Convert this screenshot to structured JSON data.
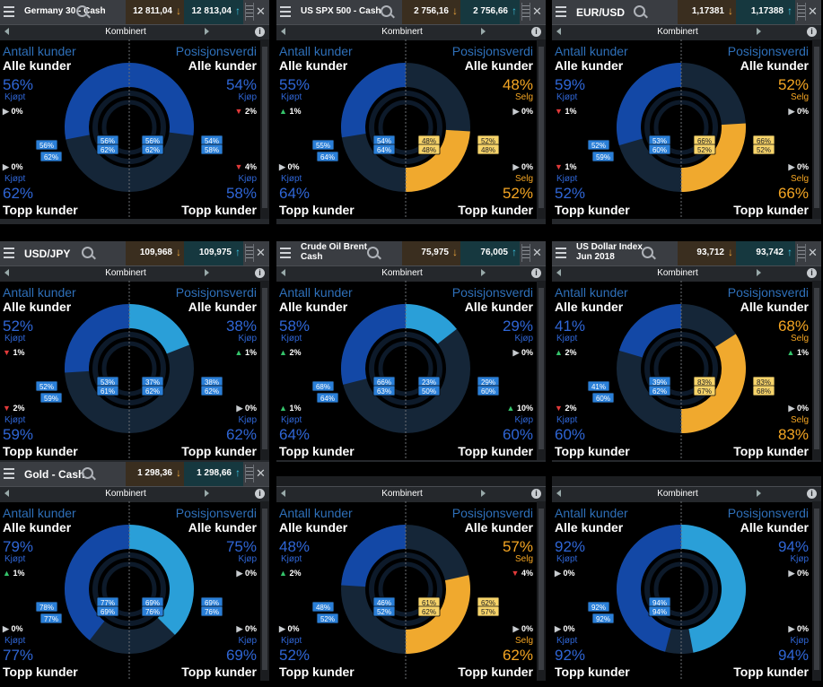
{
  "colors": {
    "buy_dark": "#1348a6",
    "buy_light": "#2a9fd8",
    "sell": "#f0a92e",
    "muted": "#152638",
    "label_blue": "#2e6fb8",
    "buy_text": "#2f66d6",
    "sell_text": "#f5a623"
  },
  "panels": [
    {
      "name": "Germany 30 - Cash",
      "title_lines": [
        "Germany 30 - Cash"
      ],
      "sell_price": "12 811,04",
      "buy_price": "12 813,04",
      "mode": "Kombinert",
      "all_clients_count": {
        "pct": "56%",
        "side": "Kjøpt",
        "change": "0%",
        "dir": "none"
      },
      "all_clients_value": {
        "pct": "54%",
        "side": "Kjøp",
        "change": "2%",
        "dir": "down"
      },
      "top_clients_count": {
        "pct": "62%",
        "side": "Kjøpt",
        "change": "0%",
        "dir": "none"
      },
      "top_clients_value": {
        "pct": "58%",
        "side": "Kjøp",
        "change": "4%",
        "dir": "down"
      },
      "ring_all_count": 56,
      "ring_all_value": 54,
      "ring_top_count": 62,
      "ring_top_value": 58,
      "bubbles": [
        "56%",
        "62%",
        "56%",
        "62%",
        "56%",
        "62%",
        "54%",
        "58%"
      ]
    },
    {
      "name": "US SPX 500 - Cash",
      "title_lines": [
        "US SPX 500 - Cash"
      ],
      "sell_price": "2 756,16",
      "buy_price": "2 756,66",
      "mode": "Kombinert",
      "all_clients_count": {
        "pct": "55%",
        "side": "Kjøpt",
        "change": "1%",
        "dir": "up"
      },
      "all_clients_value": {
        "pct": "48%",
        "side": "Selg",
        "change": "0%",
        "dir": "none"
      },
      "top_clients_count": {
        "pct": "64%",
        "side": "Kjøpt",
        "change": "0%",
        "dir": "none"
      },
      "top_clients_value": {
        "pct": "52%",
        "side": "Selg",
        "change": "0%",
        "dir": "none"
      },
      "ring_all_count": 55,
      "ring_all_value": 48,
      "ring_top_count": 64,
      "ring_top_value": 52,
      "value_sell": true,
      "bubbles": [
        "55%",
        "64%",
        "54%",
        "64%",
        "48%",
        "48%",
        "52%",
        "48%"
      ]
    },
    {
      "name": "EUR/USD",
      "title_lines": [
        "EUR/USD"
      ],
      "title_big": true,
      "sell_price": "1,17381",
      "buy_price": "1,17388",
      "mode": "Kombinert",
      "all_clients_count": {
        "pct": "59%",
        "side": "Kjøpt",
        "change": "1%",
        "dir": "down"
      },
      "all_clients_value": {
        "pct": "52%",
        "side": "Selg",
        "change": "0%",
        "dir": "none"
      },
      "top_clients_count": {
        "pct": "52%",
        "side": "Kjøpt",
        "change": "1%",
        "dir": "down"
      },
      "top_clients_value": {
        "pct": "66%",
        "side": "Selg",
        "change": "0%",
        "dir": "none"
      },
      "ring_all_count": 59,
      "ring_all_value": 52,
      "ring_top_count": 52,
      "ring_top_value": 66,
      "value_sell": true,
      "bubbles": [
        "52%",
        "59%",
        "53%",
        "60%",
        "66%",
        "52%",
        "66%",
        "52%"
      ]
    },
    {
      "name": "USD/JPY",
      "title_lines": [
        "USD/JPY"
      ],
      "title_big": true,
      "sell_price": "109,968",
      "buy_price": "109,975",
      "mode": "Kombinert",
      "all_clients_count": {
        "pct": "52%",
        "side": "Kjøpt",
        "change": "1%",
        "dir": "down"
      },
      "all_clients_value": {
        "pct": "38%",
        "side": "Kjøp",
        "change": "1%",
        "dir": "up"
      },
      "top_clients_count": {
        "pct": "59%",
        "side": "Kjøpt",
        "change": "2%",
        "dir": "down"
      },
      "top_clients_value": {
        "pct": "62%",
        "side": "Kjøp",
        "change": "0%",
        "dir": "none"
      },
      "ring_all_count": 52,
      "ring_all_value": 38,
      "ring_top_count": 59,
      "ring_top_value": 62,
      "bubbles": [
        "52%",
        "59%",
        "53%",
        "61%",
        "37%",
        "62%",
        "38%",
        "62%"
      ]
    },
    {
      "name": "Crude Oil Brent Cash",
      "title_lines": [
        "Crude Oil Brent",
        "Cash"
      ],
      "sell_price": "75,975",
      "buy_price": "76,005",
      "mode": "Kombinert",
      "all_clients_count": {
        "pct": "58%",
        "side": "Kjøpt",
        "change": "2%",
        "dir": "up"
      },
      "all_clients_value": {
        "pct": "29%",
        "side": "Kjøp",
        "change": "0%",
        "dir": "none"
      },
      "top_clients_count": {
        "pct": "64%",
        "side": "Kjøpt",
        "change": "1%",
        "dir": "up"
      },
      "top_clients_value": {
        "pct": "60%",
        "side": "Kjøp",
        "change": "10%",
        "dir": "up"
      },
      "ring_all_count": 58,
      "ring_all_value": 29,
      "ring_top_count": 64,
      "ring_top_value": 60,
      "bubbles": [
        "68%",
        "64%",
        "66%",
        "63%",
        "23%",
        "50%",
        "29%",
        "60%"
      ]
    },
    {
      "name": "US Dollar Index Jun 2018",
      "title_lines": [
        "US Dollar Index",
        "Jun 2018"
      ],
      "sell_price": "93,712",
      "buy_price": "93,742",
      "mode": "Kombinert",
      "all_clients_count": {
        "pct": "41%",
        "side": "Kjøpt",
        "change": "2%",
        "dir": "up"
      },
      "all_clients_value": {
        "pct": "68%",
        "side": "Selg",
        "change": "1%",
        "dir": "up"
      },
      "top_clients_count": {
        "pct": "60%",
        "side": "Kjøpt",
        "change": "2%",
        "dir": "down"
      },
      "top_clients_value": {
        "pct": "83%",
        "side": "Selg",
        "change": "0%",
        "dir": "none"
      },
      "ring_all_count": 41,
      "ring_all_value": 68,
      "ring_top_count": 60,
      "ring_top_value": 83,
      "value_sell": true,
      "bubbles": [
        "41%",
        "60%",
        "39%",
        "62%",
        "83%",
        "67%",
        "83%",
        "68%"
      ]
    },
    {
      "name": "Gold - Cash",
      "title_lines": [
        "Gold - Cash"
      ],
      "title_big": true,
      "sell_price": "1 298,36",
      "buy_price": "1 298,66",
      "mode": "Kombinert",
      "all_clients_count": {
        "pct": "79%",
        "side": "Kjøpt",
        "change": "1%",
        "dir": "up"
      },
      "all_clients_value": {
        "pct": "75%",
        "side": "Kjøp",
        "change": "0%",
        "dir": "none"
      },
      "top_clients_count": {
        "pct": "77%",
        "side": "Kjøpt",
        "change": "0%",
        "dir": "none"
      },
      "top_clients_value": {
        "pct": "69%",
        "side": "Kjøp",
        "change": "0%",
        "dir": "none"
      },
      "ring_all_count": 79,
      "ring_all_value": 75,
      "ring_top_count": 77,
      "ring_top_value": 69,
      "bubbles": [
        "78%",
        "77%",
        "77%",
        "69%",
        "69%",
        "76%",
        "69%",
        "76%"
      ]
    },
    {
      "name": "",
      "title_lines": [],
      "header_hidden": true,
      "sell_price": "",
      "buy_price": "",
      "mode": "Kombinert",
      "all_clients_count": {
        "pct": "48%",
        "side": "Kjøpt",
        "change": "2%",
        "dir": "up"
      },
      "all_clients_value": {
        "pct": "57%",
        "side": "Selg",
        "change": "4%",
        "dir": "down"
      },
      "top_clients_count": {
        "pct": "52%",
        "side": "Kjøpt",
        "change": "0%",
        "dir": "none"
      },
      "top_clients_value": {
        "pct": "62%",
        "side": "Selg",
        "change": "0%",
        "dir": "none"
      },
      "ring_all_count": 48,
      "ring_all_value": 57,
      "ring_top_count": 52,
      "ring_top_value": 62,
      "value_sell": true,
      "bubbles": [
        "48%",
        "52%",
        "46%",
        "52%",
        "61%",
        "62%",
        "62%",
        "57%"
      ]
    },
    {
      "name": "",
      "title_lines": [],
      "header_hidden": true,
      "sell_price": "",
      "buy_price": "",
      "mode": "Kombinert",
      "all_clients_count": {
        "pct": "92%",
        "side": "Kjøpt",
        "change": "0%",
        "dir": "none"
      },
      "all_clients_value": {
        "pct": "94%",
        "side": "Kjøp",
        "change": "0%",
        "dir": "none"
      },
      "top_clients_count": {
        "pct": "92%",
        "side": "Kjøpt",
        "change": "0%",
        "dir": "none"
      },
      "top_clients_value": {
        "pct": "94%",
        "side": "Kjøp",
        "change": "0%",
        "dir": "none"
      },
      "ring_all_count": 92,
      "ring_all_value": 94,
      "ring_top_count": 92,
      "ring_top_value": 94,
      "bubbles": [
        "92%",
        "92%",
        "94%",
        "94%"
      ]
    }
  ],
  "labels": {
    "count_heading": "Antall kunder",
    "value_heading": "Posisjonsverdi",
    "all_clients": "Alle kunder",
    "top_clients": "Topp kunder"
  }
}
